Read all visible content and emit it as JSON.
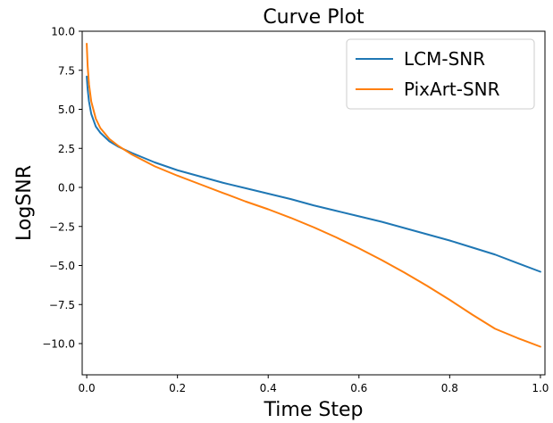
{
  "chart_data": {
    "type": "line",
    "title": "Curve Plot",
    "xlabel": "Time Step",
    "ylabel": "LogSNR",
    "xlim": [
      -0.01,
      1.01
    ],
    "ylim": [
      -12.0,
      10.0
    ],
    "grid": false,
    "legend_position": "top-right",
    "x_ticks": [
      {
        "value": 0.0,
        "label": "0.0"
      },
      {
        "value": 0.2,
        "label": "0.2"
      },
      {
        "value": 0.4,
        "label": "0.4"
      },
      {
        "value": 0.6,
        "label": "0.6"
      },
      {
        "value": 0.8,
        "label": "0.8"
      },
      {
        "value": 1.0,
        "label": "1.0"
      }
    ],
    "y_ticks": [
      {
        "value": 10.0,
        "label": "10.0"
      },
      {
        "value": 7.5,
        "label": "7.5"
      },
      {
        "value": 5.0,
        "label": "5.0"
      },
      {
        "value": 2.5,
        "label": "2.5"
      },
      {
        "value": 0.0,
        "label": "0.0"
      },
      {
        "value": -2.5,
        "label": "−2.5"
      },
      {
        "value": -5.0,
        "label": "−5.0"
      },
      {
        "value": -7.5,
        "label": "−7.5"
      },
      {
        "value": -10.0,
        "label": "−10.0"
      }
    ],
    "series": [
      {
        "name": "LCM-SNR",
        "color": "#1f77b4",
        "x": [
          0.0,
          0.002,
          0.005,
          0.01,
          0.02,
          0.03,
          0.05,
          0.07,
          0.1,
          0.15,
          0.2,
          0.25,
          0.3,
          0.35,
          0.4,
          0.45,
          0.5,
          0.55,
          0.6,
          0.65,
          0.7,
          0.75,
          0.8,
          0.85,
          0.9,
          0.95,
          1.0
        ],
        "y": [
          7.1,
          6.3,
          5.5,
          4.7,
          3.9,
          3.5,
          2.95,
          2.6,
          2.2,
          1.6,
          1.1,
          0.7,
          0.3,
          -0.05,
          -0.4,
          -0.75,
          -1.15,
          -1.5,
          -1.85,
          -2.2,
          -2.6,
          -3.0,
          -3.4,
          -3.85,
          -4.3,
          -4.85,
          -5.4
        ]
      },
      {
        "name": "PixArt-SNR",
        "color": "#ff7f0e",
        "x": [
          0.0,
          0.002,
          0.005,
          0.01,
          0.02,
          0.03,
          0.05,
          0.07,
          0.1,
          0.15,
          0.2,
          0.25,
          0.3,
          0.35,
          0.4,
          0.45,
          0.5,
          0.55,
          0.6,
          0.65,
          0.7,
          0.75,
          0.8,
          0.85,
          0.9,
          0.95,
          1.0
        ],
        "y": [
          9.2,
          7.8,
          6.6,
          5.5,
          4.4,
          3.8,
          3.1,
          2.65,
          2.1,
          1.35,
          0.75,
          0.2,
          -0.35,
          -0.9,
          -1.4,
          -1.95,
          -2.55,
          -3.2,
          -3.9,
          -4.65,
          -5.45,
          -6.3,
          -7.2,
          -8.15,
          -9.05,
          -9.65,
          -10.2
        ]
      }
    ]
  }
}
